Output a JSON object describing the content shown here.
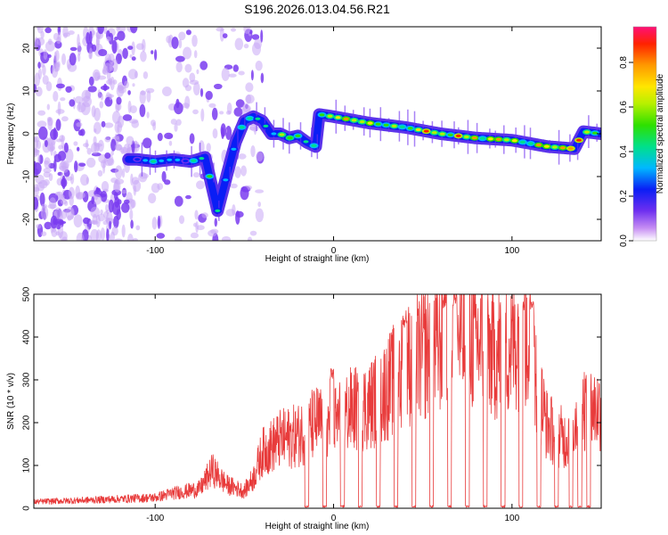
{
  "title": "S196.2026.013.04.56.R21",
  "chart_data": [
    {
      "type": "heatmap",
      "name": "spectrogram",
      "xlabel": "Height of straight line (km)",
      "ylabel": "Frequency (Hz)",
      "xlim": [
        -168,
        150
      ],
      "ylim": [
        -25,
        25
      ],
      "xticks": [
        -100,
        0,
        100
      ],
      "yticks": [
        -20,
        -10,
        0,
        10,
        20
      ],
      "colorbar": {
        "label": "Normalized spectral amplitude",
        "range": [
          0,
          0.96
        ],
        "ticks": [
          0.0,
          0.2,
          0.4,
          0.6,
          0.8
        ],
        "ticklabels": [
          "0.0",
          "0.2",
          "0.4",
          "0.6",
          "0.8"
        ]
      },
      "ridge_points": [
        [
          -110,
          -6
        ],
        [
          -100,
          -6.5
        ],
        [
          -90,
          -6
        ],
        [
          -80,
          -6.5
        ],
        [
          -72,
          -5.5
        ],
        [
          -65,
          -18
        ],
        [
          -60,
          -10
        ],
        [
          -55,
          -2
        ],
        [
          -50,
          3
        ],
        [
          -45,
          4
        ],
        [
          -40,
          3
        ],
        [
          -35,
          0
        ],
        [
          -30,
          0
        ],
        [
          -25,
          -1
        ],
        [
          -20,
          -0.5
        ],
        [
          -15,
          -2
        ],
        [
          -10,
          -3
        ],
        [
          -8,
          4.5
        ],
        [
          0,
          4
        ],
        [
          20,
          2.5
        ],
        [
          40,
          1.5
        ],
        [
          60,
          0
        ],
        [
          80,
          -1
        ],
        [
          100,
          -1.5
        ],
        [
          120,
          -3
        ],
        [
          135,
          -3.5
        ],
        [
          140,
          0.5
        ],
        [
          150,
          0
        ]
      ]
    },
    {
      "type": "line",
      "name": "snr",
      "xlabel": "Height of straight line (km)",
      "ylabel": "SNR (10 * v/v)",
      "xlim": [
        -168,
        150
      ],
      "ylim": [
        0,
        500
      ],
      "xticks": [
        -100,
        0,
        100
      ],
      "yticks": [
        0,
        100,
        200,
        300,
        400,
        500
      ],
      "color": "#e83b3b",
      "envelope": [
        [
          -168,
          15
        ],
        [
          -130,
          20
        ],
        [
          -100,
          25
        ],
        [
          -90,
          35
        ],
        [
          -75,
          45
        ],
        [
          -68,
          90
        ],
        [
          -60,
          55
        ],
        [
          -50,
          40
        ],
        [
          -45,
          70
        ],
        [
          -40,
          130
        ],
        [
          -30,
          160
        ],
        [
          -20,
          170
        ],
        [
          -10,
          200
        ],
        [
          0,
          200
        ],
        [
          10,
          230
        ],
        [
          20,
          240
        ],
        [
          30,
          280
        ],
        [
          40,
          330
        ],
        [
          50,
          360
        ],
        [
          60,
          390
        ],
        [
          70,
          400
        ],
        [
          80,
          390
        ],
        [
          90,
          360
        ],
        [
          100,
          380
        ],
        [
          105,
          420
        ],
        [
          110,
          400
        ],
        [
          115,
          270
        ],
        [
          120,
          190
        ],
        [
          130,
          160
        ],
        [
          140,
          240
        ],
        [
          150,
          230
        ]
      ],
      "gaps_km": [
        -15,
        -5,
        5,
        15,
        25,
        35,
        45,
        55,
        65,
        75,
        85,
        95,
        105,
        115,
        125,
        133,
        138,
        143
      ],
      "peaks": [
        {
          "x": -1,
          "y": 330
        },
        {
          "x": 40,
          "y": 450
        },
        {
          "x": 62,
          "y": 490
        },
        {
          "x": 68,
          "y": 500
        },
        {
          "x": 106,
          "y": 490
        },
        {
          "x": 111,
          "y": 485
        }
      ]
    }
  ]
}
